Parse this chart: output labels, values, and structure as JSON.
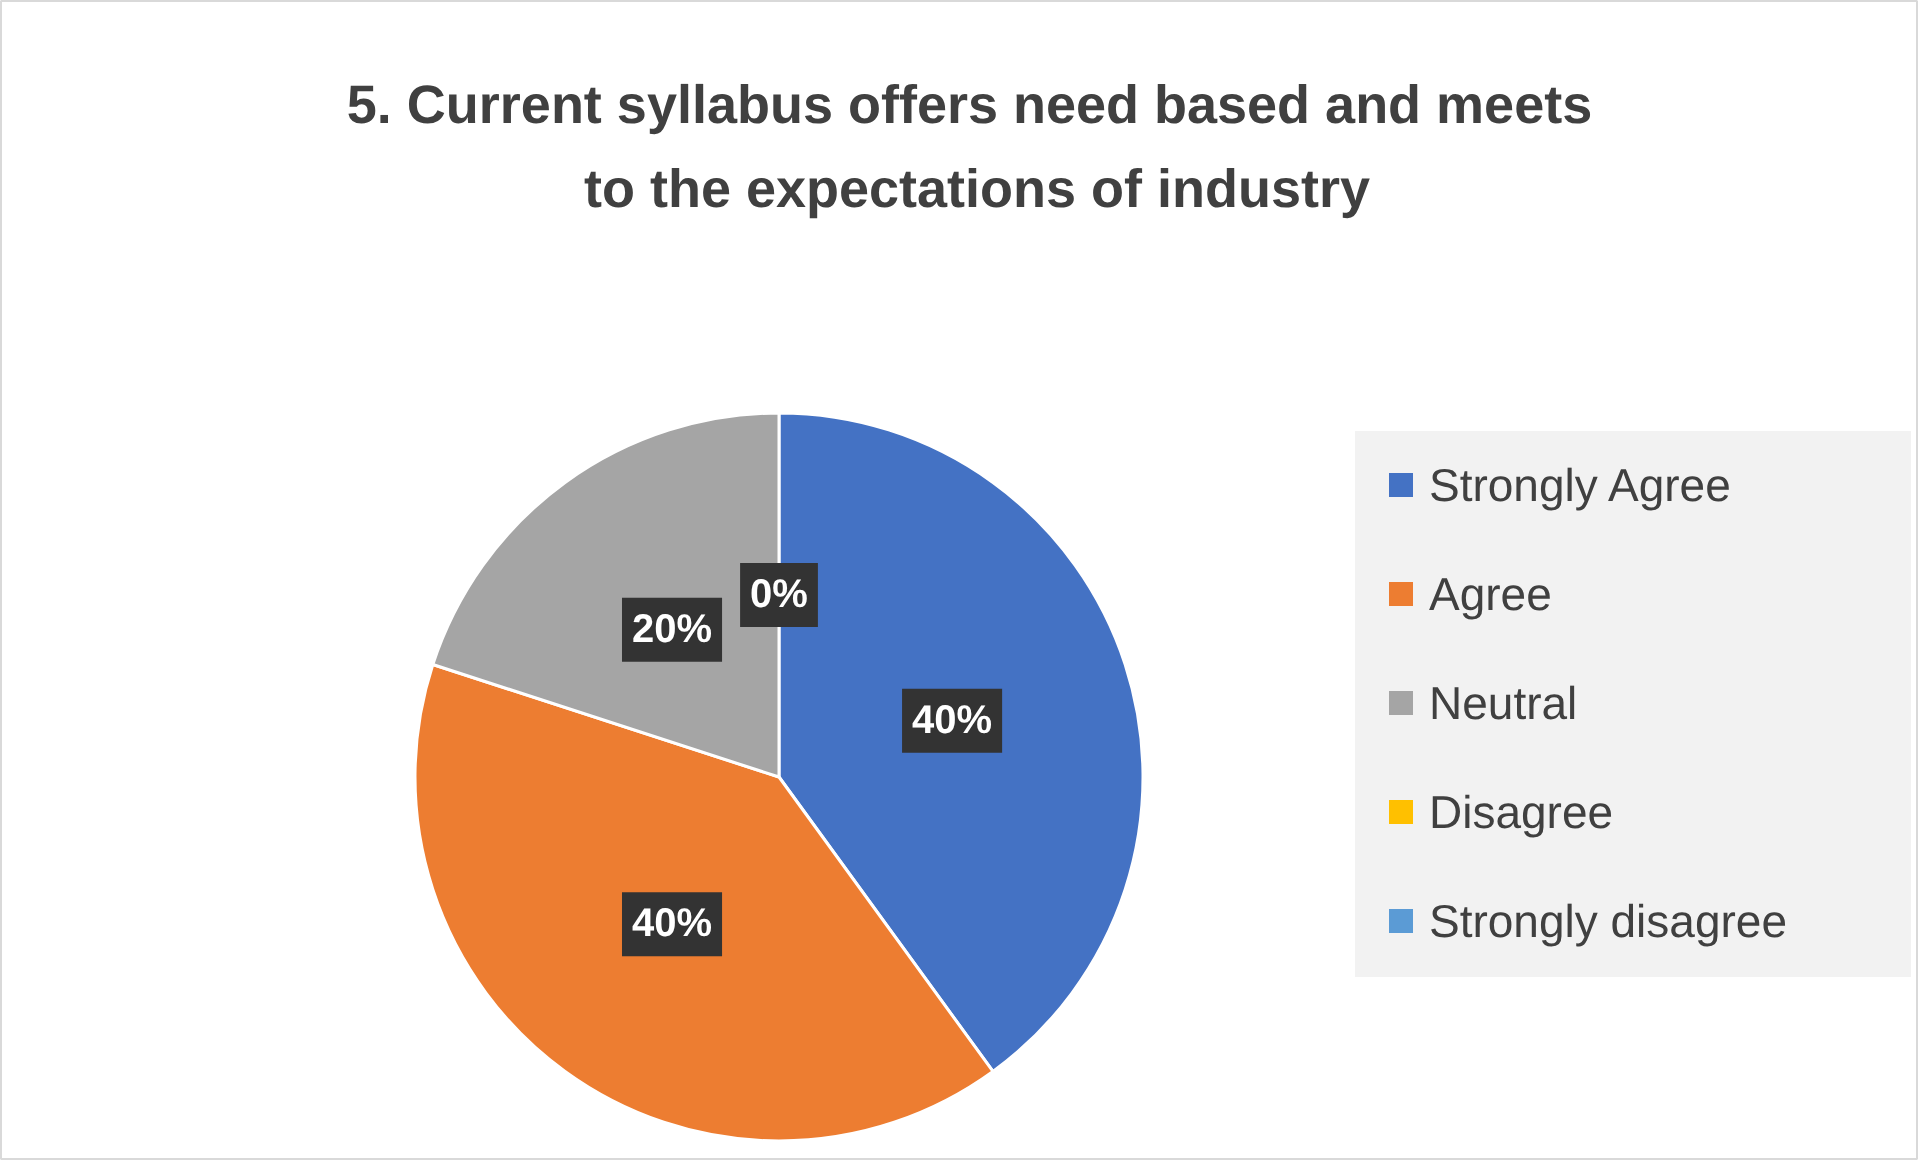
{
  "chart_data": {
    "type": "pie",
    "title": "5.  Current syllabus offers need based and meets\nto the expectations of industry",
    "categories": [
      "Strongly Agree",
      "Agree",
      "Neutral",
      "Disagree",
      "Strongly disagree"
    ],
    "values": [
      40,
      40,
      20,
      0,
      0
    ],
    "colors": [
      "#4472c4",
      "#ed7d31",
      "#a5a5a5",
      "#ffc000",
      "#5b9bd5"
    ],
    "value_labels": [
      "40%",
      "40%",
      "20%",
      "0%",
      null
    ],
    "legend": "right"
  }
}
